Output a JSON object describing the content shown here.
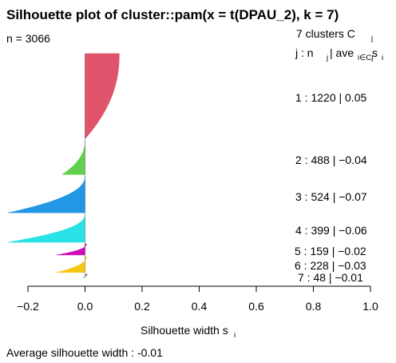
{
  "chart_data": {
    "type": "silhouette",
    "title": "Silhouette plot of cluster::pam(x = t(DPAU_2), k = 7)",
    "n_label": "n = 3066",
    "header_line1": "7  clusters  C",
    "header_line1_sub": "j",
    "header_line2_j": "j :  n",
    "header_line2_jsub": "j",
    "header_line2_ave": " | ave",
    "header_line2_avesub": "i∈Cj",
    "header_line2_s": "  s",
    "header_line2_ssub": "i",
    "xlabel": "Silhouette width s",
    "xlabel_sub": "i",
    "xlim": [
      -0.2,
      1.0
    ],
    "xticks": [
      -0.2,
      0.0,
      0.2,
      0.4,
      0.6,
      0.8,
      1.0
    ],
    "xtick_labels": [
      "−0.2",
      "0.0",
      "0.2",
      "0.4",
      "0.6",
      "0.8",
      "1.0"
    ],
    "footer": "Average silhouette width :  -0.01",
    "clusters": [
      {
        "id": 1,
        "n": 1220,
        "ave": 0.05,
        "label": "1 :   1220  |  0.05",
        "color": "#DF536B",
        "max": 0.12,
        "min": 0.0
      },
      {
        "id": 2,
        "n": 488,
        "ave": -0.04,
        "label": "2 :   488  |  −0.04",
        "color": "#61D04F",
        "max": 0.0,
        "min": -0.08
      },
      {
        "id": 3,
        "n": 524,
        "ave": -0.07,
        "label": "3 :   524  |  −0.07",
        "color": "#2297E6",
        "max": 0.0,
        "min": -0.27
      },
      {
        "id": 4,
        "n": 399,
        "ave": -0.06,
        "label": "4 :   399  |  −0.06",
        "color": "#28E2E5",
        "max": 0.0,
        "min": -0.27
      },
      {
        "id": 5,
        "n": 159,
        "ave": -0.02,
        "label": "5 :   159  |  −0.02",
        "color": "#CD0BBC",
        "max": 0.005,
        "min": -0.1
      },
      {
        "id": 6,
        "n": 228,
        "ave": -0.03,
        "label": "6 :   228  |  −0.03",
        "color": "#F5C710",
        "max": 0.005,
        "min": -0.1
      },
      {
        "id": 7,
        "n": 48,
        "ave": -0.01,
        "label": "7 :   48  |  −0.01",
        "color": "#9E9E9E",
        "max": 0.01,
        "min": -0.01
      }
    ]
  }
}
